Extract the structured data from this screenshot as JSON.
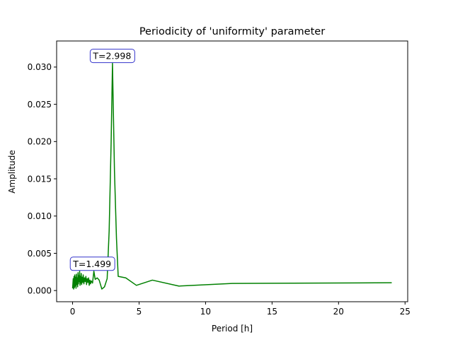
{
  "chart_data": {
    "type": "line",
    "title": "Periodicity of 'uniformity' parameter",
    "xlabel": "Period [h]",
    "ylabel": "Amplitude",
    "xlim": [
      -1.2,
      25.2
    ],
    "ylim": [
      -0.0015,
      0.0335
    ],
    "xticks": [
      0,
      5,
      10,
      15,
      20,
      25
    ],
    "xtick_labels": [
      "0",
      "5",
      "10",
      "15",
      "20",
      "25"
    ],
    "yticks": [
      0.0,
      0.005,
      0.01,
      0.015,
      0.02,
      0.025,
      0.03
    ],
    "ytick_labels": [
      "0.000",
      "0.005",
      "0.010",
      "0.015",
      "0.020",
      "0.025",
      "0.030"
    ],
    "grid": false,
    "series": [
      {
        "color": "#008000",
        "x": [
          0.0,
          0.05,
          0.08,
          0.11,
          0.14,
          0.17,
          0.2,
          0.23,
          0.26,
          0.29,
          0.32,
          0.35,
          0.38,
          0.41,
          0.44,
          0.47,
          0.5,
          0.53,
          0.56,
          0.59,
          0.62,
          0.65,
          0.68,
          0.72,
          0.76,
          0.8,
          0.85,
          0.9,
          0.95,
          1.0,
          1.05,
          1.1,
          1.15,
          1.2,
          1.25,
          1.3,
          1.35,
          1.4,
          1.5,
          1.6,
          1.7,
          1.85,
          2.0,
          2.2,
          2.4,
          2.6,
          2.75,
          2.9,
          3.0,
          3.15,
          3.3,
          3.43,
          4.0,
          4.8,
          6.0,
          8.0,
          12.0,
          24.0
        ],
        "y": [
          0.0003,
          0.0016,
          0.0002,
          0.0019,
          0.0004,
          0.0021,
          0.0006,
          0.0018,
          0.0003,
          0.0022,
          0.0008,
          0.0017,
          0.0005,
          0.0024,
          0.0009,
          0.002,
          0.0012,
          0.0026,
          0.0007,
          0.0019,
          0.001,
          0.0023,
          0.0008,
          0.0018,
          0.0011,
          0.0021,
          0.0009,
          0.0017,
          0.0012,
          0.0019,
          0.0008,
          0.0016,
          0.0011,
          0.0017,
          0.0007,
          0.0014,
          0.0009,
          0.0013,
          0.001,
          0.0026,
          0.0015,
          0.0017,
          0.0014,
          0.0002,
          0.0005,
          0.0016,
          0.008,
          0.02,
          0.0305,
          0.016,
          0.007,
          0.0019,
          0.0017,
          0.0007,
          0.0014,
          0.0006,
          0.00095,
          0.00105
        ]
      }
    ],
    "annotations": [
      {
        "text": "T=2.998",
        "x": 2.998,
        "y": 0.0305
      },
      {
        "text": "T=1.499",
        "x": 1.499,
        "y": 0.0026
      }
    ]
  }
}
